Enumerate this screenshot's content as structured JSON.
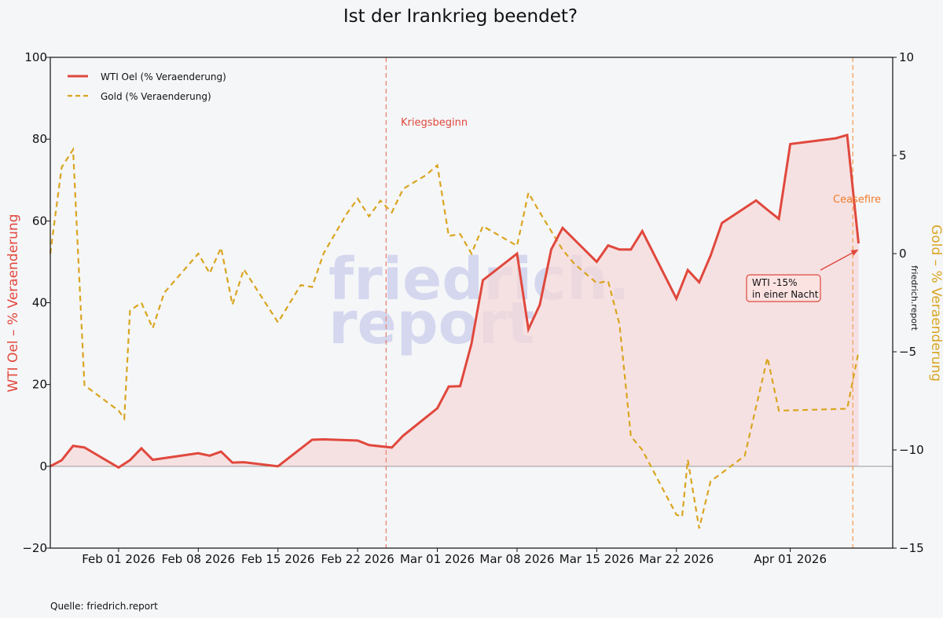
{
  "colors": {
    "oil": "#e0483d",
    "gold": "#d9a520",
    "fill": "#f7d8d8",
    "vline_oil": "#e8897f",
    "vline_cease": "#f0a868",
    "ceasefire_text": "#f07a2a",
    "watermark": "#c9cdeb"
  },
  "chart_data": {
    "type": "line",
    "title": "Ist der Irankrieg beendet?",
    "source": "Quelle: friedrich.report",
    "watermark": [
      "friedrich.",
      "report"
    ],
    "side_label": "friedrich.report",
    "grid": false,
    "legend_position": "top-left",
    "xlim": [
      "2026-01-26",
      "2026-04-10"
    ],
    "xticks": [
      "2026-02-01",
      "2026-02-08",
      "2026-02-15",
      "2026-02-22",
      "2026-03-01",
      "2026-03-08",
      "2026-03-15",
      "2026-03-22",
      "2026-04-01"
    ],
    "xtick_labels": [
      "Feb 01 2026",
      "Feb 08 2026",
      "Feb 15 2026",
      "Feb 22 2026",
      "Mar 01 2026",
      "Mar 08 2026",
      "Mar 15 2026",
      "Mar 22 2026",
      "Apr 01 2026"
    ],
    "y_left": {
      "label": "WTI Oel – % Veraenderung",
      "lim": [
        -20,
        100
      ],
      "ticks": [
        -20,
        0,
        20,
        40,
        60,
        80,
        100
      ]
    },
    "y_right": {
      "label": "Gold – % Veraenderung",
      "lim": [
        -15,
        10
      ],
      "ticks": [
        -15,
        -10,
        -5,
        0,
        5,
        10
      ]
    },
    "series": [
      {
        "name": "WTI Oel (% Veraenderung)",
        "axis": "left",
        "style": "solid",
        "area_fill": true,
        "points": [
          [
            "2026-01-26",
            0
          ],
          [
            "2026-01-27",
            1.5
          ],
          [
            "2026-01-28",
            5
          ],
          [
            "2026-01-29",
            4.6
          ],
          [
            "2026-02-01",
            -0.3
          ],
          [
            "2026-02-02",
            1.5
          ],
          [
            "2026-02-03",
            4.4
          ],
          [
            "2026-02-04",
            1.6
          ],
          [
            "2026-02-08",
            3.2
          ],
          [
            "2026-02-09",
            2.6
          ],
          [
            "2026-02-10",
            3.6
          ],
          [
            "2026-02-11",
            0.9
          ],
          [
            "2026-02-12",
            1
          ],
          [
            "2026-02-15",
            0
          ],
          [
            "2026-02-18",
            6.5
          ],
          [
            "2026-02-19",
            6.6
          ],
          [
            "2026-02-22",
            6.3
          ],
          [
            "2026-02-23",
            5.2
          ],
          [
            "2026-02-25",
            4.6
          ],
          [
            "2026-02-26",
            7.5
          ],
          [
            "2026-03-01",
            14.2
          ],
          [
            "2026-03-02",
            19.5
          ],
          [
            "2026-03-03",
            19.6
          ],
          [
            "2026-03-04",
            30
          ],
          [
            "2026-03-05",
            45.5
          ],
          [
            "2026-03-08",
            52
          ],
          [
            "2026-03-09",
            33.5
          ],
          [
            "2026-03-10",
            39.5
          ],
          [
            "2026-03-11",
            53
          ],
          [
            "2026-03-12",
            58.3
          ],
          [
            "2026-03-15",
            50
          ],
          [
            "2026-03-16",
            54
          ],
          [
            "2026-03-17",
            53
          ],
          [
            "2026-03-18",
            53
          ],
          [
            "2026-03-19",
            57.5
          ],
          [
            "2026-03-22",
            41
          ],
          [
            "2026-03-23",
            48
          ],
          [
            "2026-03-24",
            45
          ],
          [
            "2026-03-25",
            51.5
          ],
          [
            "2026-03-26",
            59.5
          ],
          [
            "2026-03-29",
            65
          ],
          [
            "2026-03-30",
            62.7
          ],
          [
            "2026-03-31",
            60.5
          ],
          [
            "2026-04-01",
            78.8
          ],
          [
            "2026-04-05",
            80.2
          ],
          [
            "2026-04-06",
            81
          ],
          [
            "2026-04-07",
            54.5
          ]
        ]
      },
      {
        "name": "Gold (% Veraenderung)",
        "axis": "right",
        "style": "dashed",
        "area_fill": false,
        "points": [
          [
            "2026-01-26",
            0
          ],
          [
            "2026-01-27",
            4.4
          ],
          [
            "2026-01-28",
            5.3
          ],
          [
            "2026-01-29",
            -6.7
          ],
          [
            "2026-02-01",
            -8
          ],
          [
            "2026-02-01T12",
            -8.4
          ],
          [
            "2026-02-02",
            -2.9
          ],
          [
            "2026-02-03",
            -2.5
          ],
          [
            "2026-02-04",
            -3.8
          ],
          [
            "2026-02-05",
            -2
          ],
          [
            "2026-02-08",
            0
          ],
          [
            "2026-02-09",
            -1
          ],
          [
            "2026-02-10",
            0.3
          ],
          [
            "2026-02-11",
            -2.6
          ],
          [
            "2026-02-12",
            -0.8
          ],
          [
            "2026-02-15",
            -3.5
          ],
          [
            "2026-02-17",
            -1.6
          ],
          [
            "2026-02-18",
            -1.7
          ],
          [
            "2026-02-19",
            0
          ],
          [
            "2026-02-21",
            2
          ],
          [
            "2026-02-22",
            2.8
          ],
          [
            "2026-02-23",
            1.9
          ],
          [
            "2026-02-24",
            2.7
          ],
          [
            "2026-02-25",
            2.1
          ],
          [
            "2026-02-26",
            3.3
          ],
          [
            "2026-02-28",
            4
          ],
          [
            "2026-03-01",
            4.5
          ],
          [
            "2026-03-02",
            0.9
          ],
          [
            "2026-03-03",
            1
          ],
          [
            "2026-03-04",
            0
          ],
          [
            "2026-03-05",
            1.4
          ],
          [
            "2026-03-08",
            0.4
          ],
          [
            "2026-03-09",
            3.1
          ],
          [
            "2026-03-10",
            2.1
          ],
          [
            "2026-03-12",
            0.2
          ],
          [
            "2026-03-13",
            -0.5
          ],
          [
            "2026-03-15",
            -1.5
          ],
          [
            "2026-03-16",
            -1.4
          ],
          [
            "2026-03-17",
            -3.6
          ],
          [
            "2026-03-18",
            -9.3
          ],
          [
            "2026-03-19",
            -10
          ],
          [
            "2026-03-22",
            -13.3
          ],
          [
            "2026-03-22T12",
            -13.4
          ],
          [
            "2026-03-23",
            -10.5
          ],
          [
            "2026-03-24",
            -14
          ],
          [
            "2026-03-25",
            -11.6
          ],
          [
            "2026-03-28",
            -10.3
          ],
          [
            "2026-03-30",
            -5.3
          ],
          [
            "2026-03-31",
            -8
          ],
          [
            "2026-04-06",
            -7.9
          ],
          [
            "2026-04-07",
            -5
          ]
        ]
      }
    ],
    "vlines": [
      {
        "date": "2026-02-24T12",
        "label": "Kriegsbeginn"
      },
      {
        "date": "2026-04-06T12",
        "label": "Ceasefire"
      }
    ],
    "annotation": {
      "lines": [
        "WTI -15%",
        "in einer Nacht"
      ],
      "arrow_to_date": "2026-04-07",
      "arrow_to_value_left": 53
    }
  }
}
